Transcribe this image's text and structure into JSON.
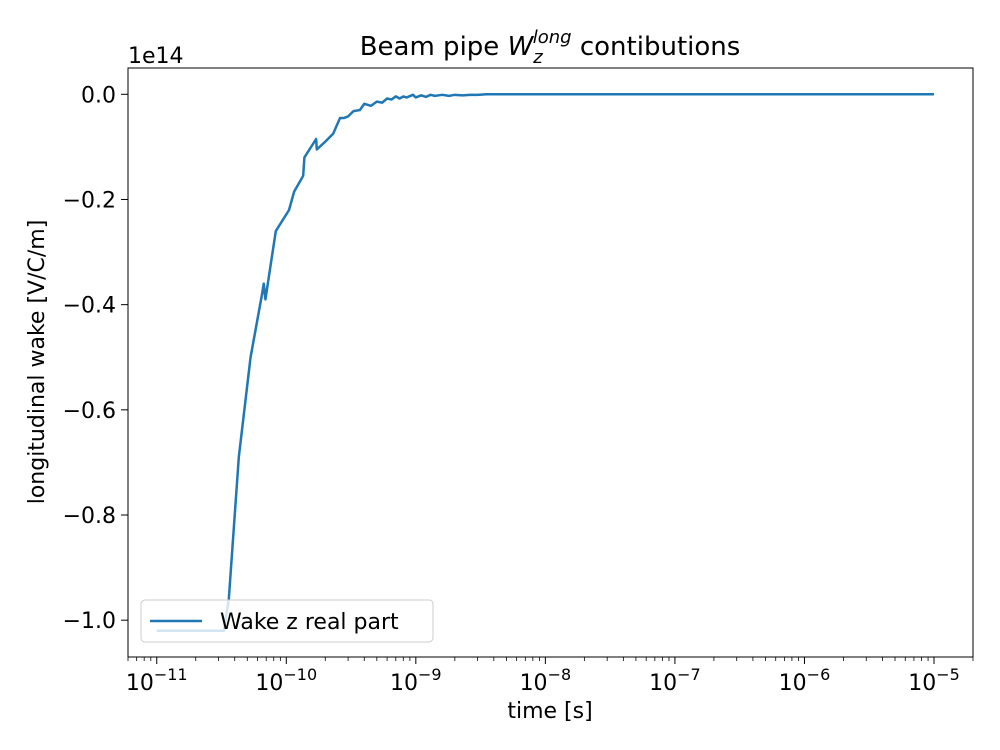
{
  "chart_data": {
    "type": "line",
    "title": {
      "prefix": "Beam pipe ",
      "symbol": "W",
      "sub": "z",
      "sup": "long",
      "suffix": " contibutions"
    },
    "xlabel": "time [s]",
    "ylabel": "longitudinal wake [V/C/m]",
    "x_scale": "log",
    "xlim": [
      6e-12,
      2e-05
    ],
    "ylim": [
      -1.07,
      0.05
    ],
    "y_offset_label": "1e14",
    "x_ticks": [
      {
        "value": 1e-11,
        "base": "10",
        "exp": "−11"
      },
      {
        "value": 1e-10,
        "base": "10",
        "exp": "−10"
      },
      {
        "value": 1e-09,
        "base": "10",
        "exp": "−9"
      },
      {
        "value": 1e-08,
        "base": "10",
        "exp": "−8"
      },
      {
        "value": 1e-07,
        "base": "10",
        "exp": "−7"
      },
      {
        "value": 1e-06,
        "base": "10",
        "exp": "−6"
      },
      {
        "value": 1e-05,
        "base": "10",
        "exp": "−5"
      }
    ],
    "y_ticks": [
      {
        "value": 0.0,
        "label": "0.0"
      },
      {
        "value": -0.2,
        "label": "−0.2"
      },
      {
        "value": -0.4,
        "label": "−0.4"
      },
      {
        "value": -0.6,
        "label": "−0.6"
      },
      {
        "value": -0.8,
        "label": "−0.8"
      },
      {
        "value": -1.0,
        "label": "−1.0"
      }
    ],
    "legend_position": "lower-left",
    "series": [
      {
        "name": "Wake z real part",
        "color": "#1f77b4",
        "x": [
          1e-11,
          2e-11,
          3.3e-11,
          3.6e-11,
          4.3e-11,
          5.3e-11,
          6.5e-11,
          6.7e-11,
          6.9e-11,
          8.3e-11,
          1.05e-10,
          1.15e-10,
          1.35e-10,
          1.38e-10,
          1.7e-10,
          1.72e-10,
          2e-10,
          2.3e-10,
          2.6e-10,
          2.8e-10,
          3e-10,
          3.3e-10,
          3.7e-10,
          4e-10,
          4.5e-10,
          5e-10,
          5.5e-10,
          6e-10,
          6.5e-10,
          7e-10,
          7.5e-10,
          8e-10,
          8.5e-10,
          9.5e-10,
          1e-09,
          1.1e-09,
          1.2e-09,
          1.3e-09,
          1.4e-09,
          1.6e-09,
          1.8e-09,
          2e-09,
          2.3e-09,
          2.6e-09,
          3e-09,
          3.5e-09,
          5e-09,
          1e-08,
          1e-07,
          1e-06,
          1e-05
        ],
        "y": [
          -1.02,
          -1.02,
          -1.02,
          -0.96,
          -0.69,
          -0.5,
          -0.38,
          -0.36,
          -0.39,
          -0.26,
          -0.22,
          -0.185,
          -0.155,
          -0.12,
          -0.085,
          -0.105,
          -0.09,
          -0.075,
          -0.045,
          -0.045,
          -0.042,
          -0.032,
          -0.03,
          -0.018,
          -0.022,
          -0.014,
          -0.016,
          -0.008,
          -0.01,
          -0.004,
          -0.008,
          -0.004,
          -0.006,
          -0.001,
          -0.006,
          -0.002,
          -0.005,
          -0.001,
          -0.003,
          -0.001,
          -0.003,
          -0.001,
          -0.002,
          -0.001,
          -0.001,
          0.0,
          0.0,
          0.0,
          0.0,
          0.0,
          0.0
        ]
      }
    ]
  }
}
